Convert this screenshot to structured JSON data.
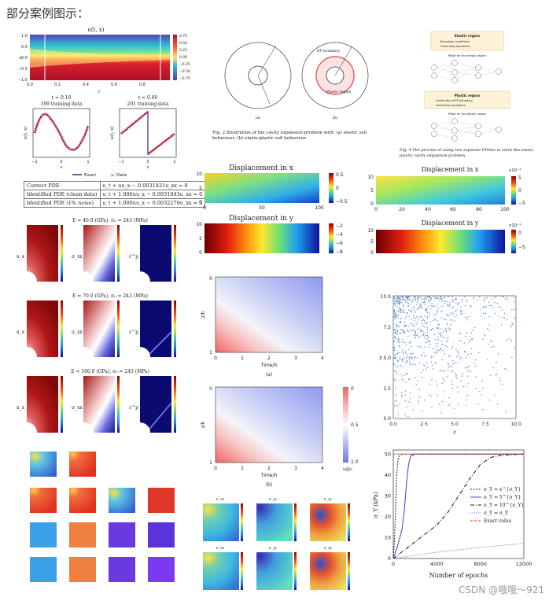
{
  "page": {
    "title": "部分案例图示：",
    "watermark": "CSDN @哦哦～921"
  },
  "burgers": {
    "title": "u(t, x)",
    "x_ticks": [
      "1.0",
      "0.5",
      "0.0",
      "−0.5",
      "−1.0"
    ],
    "t_ticks": [
      "0.0",
      "0.2",
      "0.4",
      "0.6",
      "0.8"
    ],
    "t_label": "t",
    "x_label": "x",
    "colorbar_ticks": [
      "0.75",
      "0.50",
      "0.25",
      "0.00",
      "−0.25",
      "−0.50",
      "−0.75"
    ],
    "slice1_title1": "t = 0.10",
    "slice1_title2": "199 training data",
    "slice2_title1": "t = 0.90",
    "slice2_title2": "201 training data",
    "slice_ylabel1": "u(t, x)",
    "slice_ylabel2": "u(t, x)",
    "slice_xlabel": "x",
    "slice_xticks": [
      "−1",
      "0",
      "1"
    ],
    "legend_exact": "Exact",
    "legend_data": "Data",
    "table": [
      [
        "Correct PDE",
        "u_t + uu_x − 0.0031831u_xx = 0"
      ],
      [
        "Identified PDE (clean data)",
        "u_t + 1.000uu_x − 0.0031843u_xx = 0"
      ],
      [
        "Identified PDE (1% noise)",
        "u_t + 1.000uu_x − 0.0032276u_xx = 0"
      ]
    ]
  },
  "cavity": {
    "label_a": "(a)",
    "label_b": "(b)",
    "ep_boundary": "EP boundary",
    "plastic_region": "Plastic region",
    "caption": "Fig. 2 Illustration of the cavity expansion problem with: (a) elastic soil behaviour; (b) elasto-plastic soil behaviour"
  },
  "pinn_flow": {
    "box1_title": "Elastic region",
    "box1_items": [
      "Boundary conditions",
      "Governing equations"
    ],
    "net1_label": "PINet for the elastic region",
    "box2_title": "Plastic region",
    "box2_items": [
      "Continuity at EP boundary",
      "Governing equations"
    ],
    "net2_label": "PINet for the plastic region",
    "caption": "Fig. 4 The process of using two separate PINets to solve the elasto-plastic cavity expansion problem"
  },
  "disp_mid": {
    "title1": "Displacement in x",
    "title2": "Displacement in y",
    "y_ticks": [
      "10",
      "5",
      "0"
    ],
    "x_ticks": [
      "0",
      "50",
      "100"
    ],
    "cb1_ticks": [
      "0.5",
      "0",
      "−0.5"
    ],
    "cb2_ticks": [
      "−2",
      "−4",
      "−6",
      "−8"
    ]
  },
  "disp_right": {
    "title1": "Displacement in x",
    "title2": "Displacement in y",
    "y_ticks": [
      "10",
      "5",
      "0"
    ],
    "x_ticks": [
      "0",
      "20",
      "40",
      "60",
      "80",
      "100"
    ],
    "cb1_exp": "x10⁻⁴",
    "cb1_ticks": [
      "5",
      "0",
      "−5"
    ],
    "cb2_exp": "x10⁻⁴",
    "cb2_ticks": [
      "0",
      "−5"
    ]
  },
  "stress_grid": {
    "rows": [
      "E = 40.0 (GPa), σ₀ = 243 (MPa)",
      "E = 70.0 (GPa), σ₀ = 243 (MPa)",
      "E = 100.0 (GPa), σ₀ = 243 (MPa)"
    ],
    "row_labels": [
      "u_x",
      "σ_xx",
      "ε^p"
    ]
  },
  "consolidation": {
    "ylabel": "z/h",
    "xlabel": "Time/h",
    "y_ticks": [
      "0",
      "1"
    ],
    "x_ticks": [
      "0",
      "1",
      "2",
      "3",
      "4"
    ],
    "label_a": "(a)",
    "label_b": "(b)",
    "cb_ticks": [
      "0",
      "0.5",
      "1.0"
    ],
    "cb_label": "u/p₀"
  },
  "scatter": {
    "y_ticks": [
      "10.0",
      "7.5",
      "5.0",
      "2.5",
      "0.0"
    ],
    "x_ticks": [
      "0.0",
      "2.5",
      "5.0",
      "7.5",
      "10.0"
    ],
    "xlabel": "x",
    "ylabel": "y"
  },
  "convergence": {
    "ylabel": "σ_Y (kPa)",
    "xlabel": "Number of epochs",
    "y_ticks": [
      "50",
      "40",
      "30",
      "20",
      "10",
      "0"
    ],
    "x_ticks": [
      "0",
      "4000",
      "8000",
      "12000"
    ],
    "legend": [
      "σ_Y = e^{σ_Y}",
      "σ_Y = 5^{σ_Y}",
      "σ_Y = 10^{σ_Y}",
      "σ_Y = σ_Y",
      "Exact value"
    ],
    "colors": [
      "#222222",
      "#4040c8",
      "#111111",
      "#6b6bd6",
      "#e03030"
    ],
    "chart_data": {
      "type": "line",
      "title": "",
      "xlabel": "Number of epochs",
      "ylabel": "σ_Y (kPa)",
      "xlim": [
        0,
        12000
      ],
      "ylim": [
        0,
        52
      ],
      "series": [
        {
          "name": "σ_Y = e^{σ_Y}",
          "x": [
            0,
            100,
            200,
            300,
            400,
            500,
            600,
            800,
            1000,
            2000,
            4000,
            8000,
            12000
          ],
          "y": [
            0,
            8,
            22,
            38,
            46,
            48.5,
            49.5,
            50,
            50,
            50,
            50,
            50,
            50
          ]
        },
        {
          "name": "σ_Y = 5^{σ_Y}",
          "x": [
            0,
            400,
            800,
            1000,
            1200,
            1400,
            1600,
            2000,
            3000,
            4000,
            8000,
            12000
          ],
          "y": [
            0,
            6,
            14,
            22,
            35,
            45,
            49,
            50,
            50,
            50,
            50,
            50
          ]
        },
        {
          "name": "σ_Y = 10^{σ_Y}",
          "x": [
            0,
            1000,
            2000,
            3000,
            4000,
            5000,
            6000,
            7000,
            8000,
            9000,
            10000,
            12000
          ],
          "y": [
            0,
            4,
            8,
            12,
            16,
            22,
            30,
            38,
            45,
            48.5,
            49.5,
            50
          ]
        },
        {
          "name": "σ_Y = σ_Y",
          "x": [
            0,
            2000,
            4000,
            6000,
            8000,
            10000,
            12000
          ],
          "y": [
            0,
            1.5,
            3,
            4.2,
            5.3,
            6.3,
            7.2
          ]
        },
        {
          "name": "Exact value",
          "x": [
            0,
            12000
          ],
          "y": [
            50,
            50
          ]
        }
      ]
    }
  },
  "small_grid": {
    "bottom_labels": [
      "σ_xx",
      "σ_yy",
      "σ_xy",
      "τ",
      "σ_xx",
      "σ_yy",
      "σ_xy"
    ]
  }
}
